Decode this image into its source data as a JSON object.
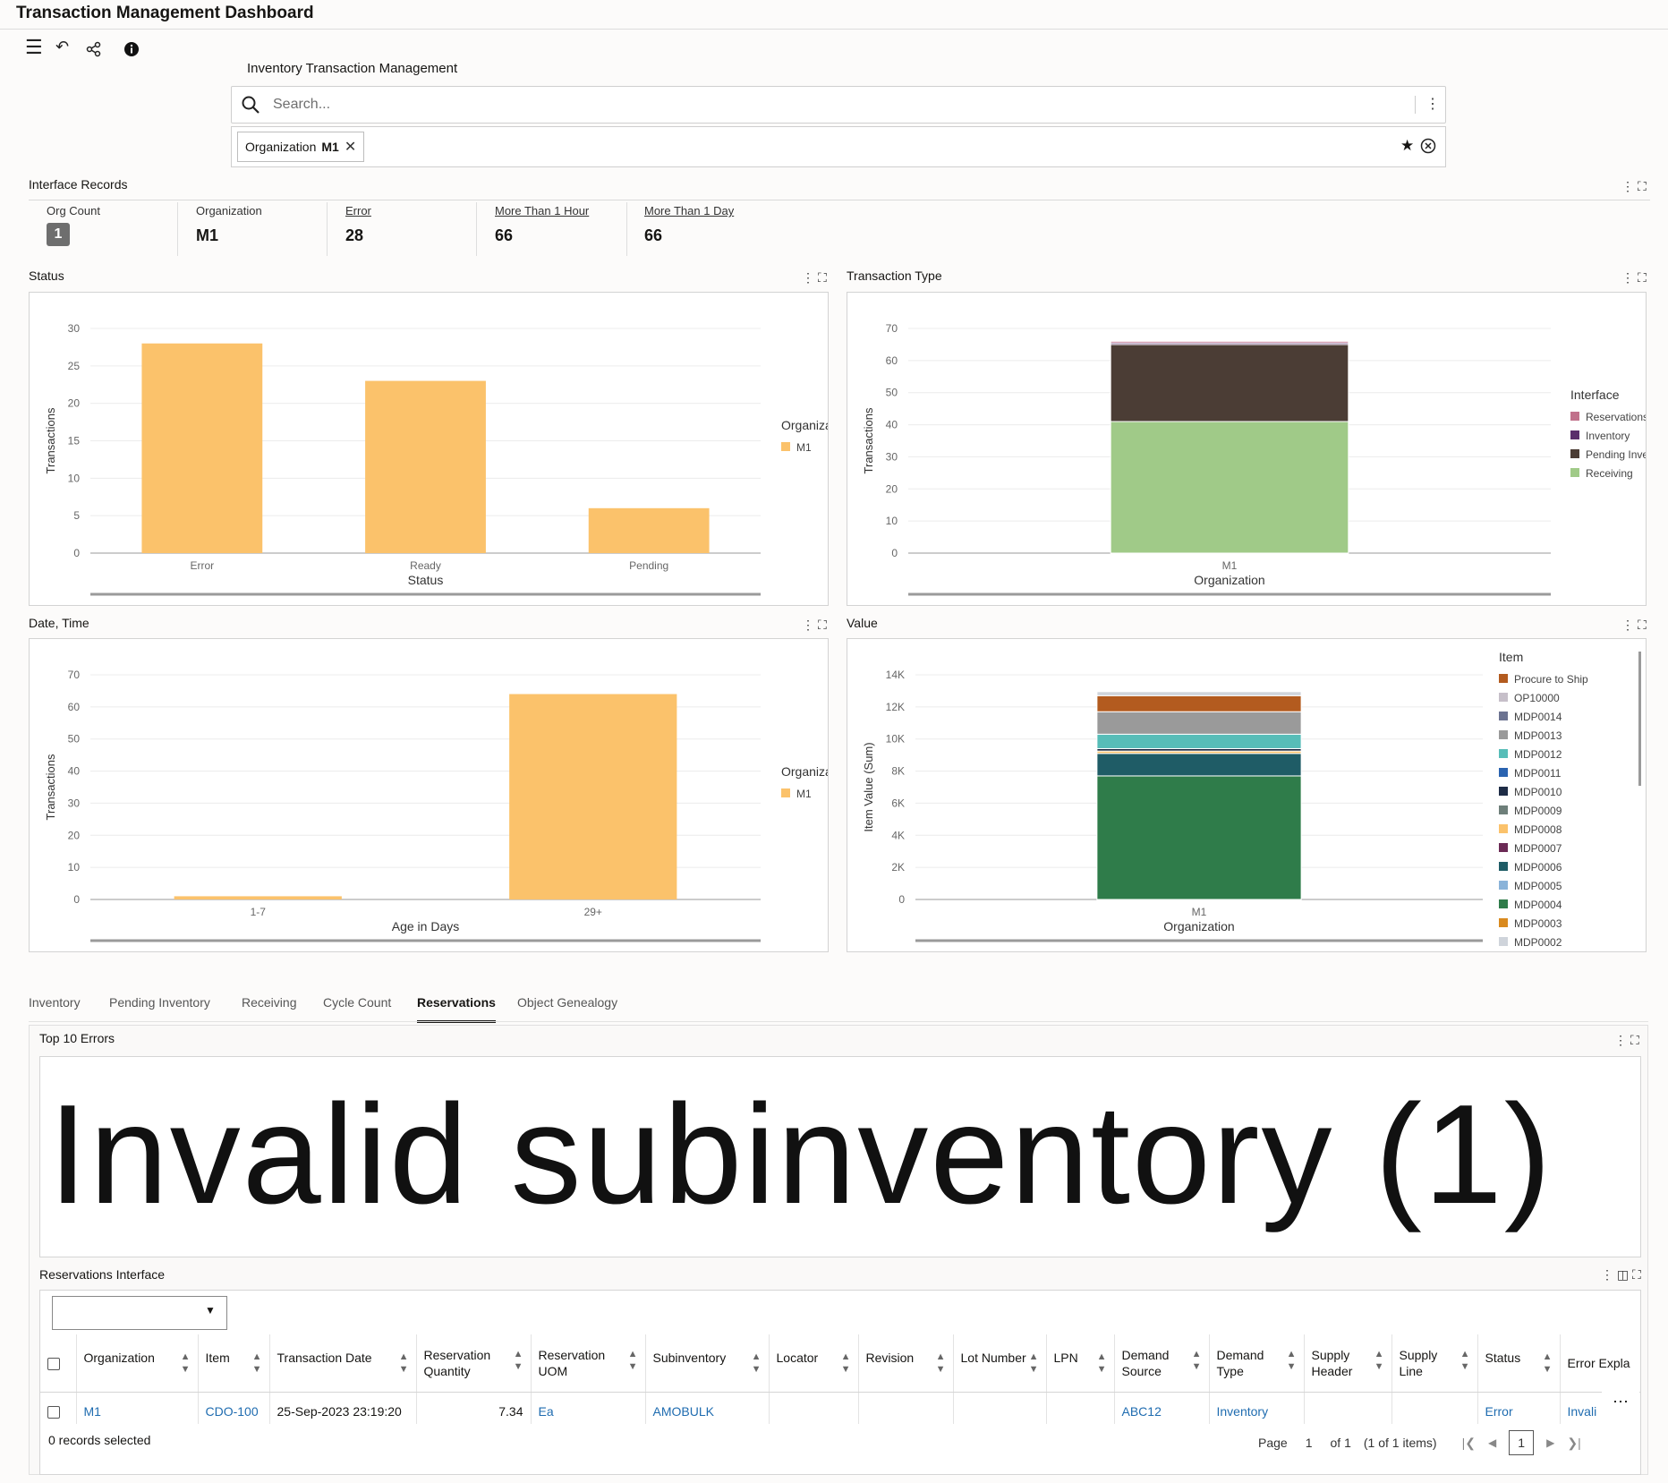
{
  "app": {
    "title": "Transaction Management Dashboard"
  },
  "toolbar": {
    "icons": [
      "menu-icon",
      "undo-icon",
      "share-icon",
      "info-icon"
    ]
  },
  "page": {
    "title": "Inventory Transaction Management",
    "search_placeholder": "Search...",
    "filter_chip": {
      "label": "Organization",
      "value": "M1"
    }
  },
  "interface_records": {
    "title": "Interface Records",
    "metrics": [
      {
        "label": "Org Count",
        "value": "1"
      },
      {
        "label": "Organization",
        "value": "M1"
      },
      {
        "label": "Error",
        "value": "28"
      },
      {
        "label": "More Than 1 Hour",
        "value": "66"
      },
      {
        "label": "More Than 1 Day",
        "value": "66"
      }
    ]
  },
  "panels": {
    "status": "Status",
    "transaction_type": "Transaction Type",
    "date_time": "Date, Time",
    "value": "Value"
  },
  "chart_data": [
    {
      "type": "bar",
      "title": "Status",
      "categories": [
        "Error",
        "Ready",
        "Pending"
      ],
      "series": [
        {
          "name": "M1",
          "values": [
            28,
            23,
            6
          ]
        }
      ],
      "xlabel": "Status",
      "ylabel": "Transactions",
      "ylim": [
        0,
        30
      ],
      "yticks": [
        "0",
        "5",
        "10",
        "15",
        "20",
        "25",
        "30"
      ],
      "legend_title": "Organization",
      "legend_position": "right",
      "colors": [
        "#fbc26b"
      ]
    },
    {
      "type": "bar",
      "title": "Transaction Type",
      "stacked": true,
      "categories": [
        "M1"
      ],
      "series": [
        {
          "name": "Receiving",
          "values": [
            41
          ]
        },
        {
          "name": "Pending Inventory",
          "values": [
            24
          ]
        },
        {
          "name": "Inventory",
          "values": [
            0.5
          ]
        },
        {
          "name": "Reservations",
          "values": [
            0.5
          ]
        }
      ],
      "legend_order": [
        "Reservations",
        "Inventory",
        "Pending Inventory",
        "Receiving"
      ],
      "xlabel": "Organization",
      "ylabel": "Transactions",
      "ylim": [
        0,
        70
      ],
      "yticks": [
        "0",
        "10",
        "20",
        "30",
        "40",
        "50",
        "60",
        "70"
      ],
      "legend_title": "Interface",
      "legend_position": "right",
      "colors": {
        "Receiving": "#a0ca88",
        "Pending Inventory": "#4b3d35",
        "Inventory": "#5a2e6b",
        "Reservations": "#c1718b"
      }
    },
    {
      "type": "bar",
      "title": "Date, Time",
      "categories": [
        "1-7",
        "29+"
      ],
      "series": [
        {
          "name": "M1",
          "values": [
            1,
            64
          ]
        }
      ],
      "xlabel": "Age in Days",
      "ylabel": "Transactions",
      "ylim": [
        0,
        70
      ],
      "yticks": [
        "0",
        "10",
        "20",
        "30",
        "40",
        "50",
        "60",
        "70"
      ],
      "legend_title": "Organization",
      "legend_position": "right",
      "colors": [
        "#fbc26b"
      ]
    },
    {
      "type": "bar",
      "title": "Value",
      "stacked": true,
      "categories": [
        "M1"
      ],
      "series": [
        {
          "name": "MDP0004",
          "values": [
            7700
          ]
        },
        {
          "name": "MDP0006",
          "values": [
            1400
          ]
        },
        {
          "name": "MDP0008",
          "values": [
            150
          ]
        },
        {
          "name": "MDP0010",
          "values": [
            150
          ]
        },
        {
          "name": "MDP0012",
          "values": [
            900
          ]
        },
        {
          "name": "MDP0013",
          "values": [
            1400
          ]
        },
        {
          "name": "Procure to Ship",
          "values": [
            1000
          ]
        },
        {
          "name": "MDP0002",
          "values": [
            250
          ]
        }
      ],
      "legend_items": [
        "Procure to Ship",
        "OP10000",
        "MDP0014",
        "MDP0013",
        "MDP0012",
        "MDP0011",
        "MDP0010",
        "MDP0009",
        "MDP0008",
        "MDP0007",
        "MDP0006",
        "MDP0005",
        "MDP0004",
        "MDP0003",
        "MDP0002"
      ],
      "xlabel": "Organization",
      "ylabel": "Item Value (Sum)",
      "ylim": [
        0,
        14000
      ],
      "yticks": [
        "0",
        "2K",
        "4K",
        "6K",
        "8K",
        "10K",
        "12K",
        "14K"
      ],
      "legend_title": "Item",
      "legend_position": "right",
      "colors": {
        "Procure to Ship": "#b35b1f",
        "OP10000": "#c6bfc9",
        "MDP0014": "#6c7391",
        "MDP0013": "#9a9a9a",
        "MDP0012": "#57bdb8",
        "MDP0011": "#2a63b0",
        "MDP0010": "#1e2c46",
        "MDP0009": "#6e7f7a",
        "MDP0008": "#fbc26b",
        "MDP0007": "#6b2a55",
        "MDP0006": "#1f5c66",
        "MDP0005": "#8ab3d9",
        "MDP0004": "#2f7c4a",
        "MDP0003": "#d98a1f",
        "MDP0002": "#cfd4db"
      }
    }
  ],
  "tabs": [
    "Inventory",
    "Pending Inventory",
    "Receiving",
    "Cycle Count",
    "Reservations",
    "Object Genealogy"
  ],
  "active_tab": "Reservations",
  "top_errors": {
    "title": "Top 10 Errors",
    "word_cloud": "Invalid subinventory (1)"
  },
  "reservations": {
    "title": "Reservations Interface",
    "columns": [
      "Organization",
      "Item",
      "Transaction Date",
      "Reservation Quantity",
      "Reservation UOM",
      "Subinventory",
      "Locator",
      "Revision",
      "Lot Number",
      "LPN",
      "Demand Source",
      "Demand Type",
      "Supply Header",
      "Supply Line",
      "Status",
      "Error Expla"
    ],
    "rows": [
      [
        "M1",
        "CDO-100",
        "25-Sep-2023 23:19:20",
        "7.34",
        "Ea",
        "AMOBULK",
        "",
        "",
        "",
        "",
        "ABC12",
        "Inventory",
        "",
        "",
        "Error",
        "Invali"
      ]
    ],
    "selected_text": "0 records selected",
    "pager": {
      "page_label": "Page",
      "page": "1",
      "of": "of 1",
      "items": "(1 of 1 items)"
    }
  }
}
